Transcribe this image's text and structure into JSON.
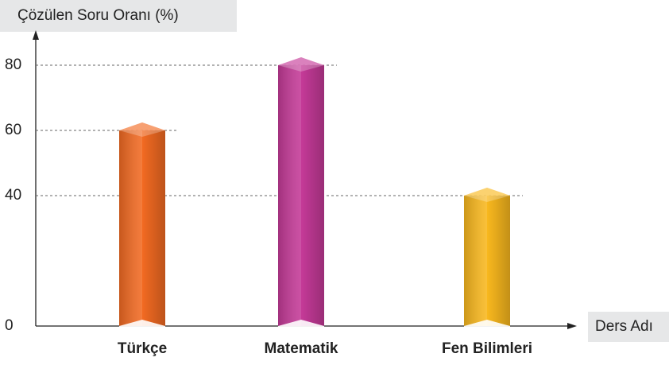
{
  "chart_data": {
    "type": "bar",
    "y_axis_label": "Çözülen Soru Oranı (%)",
    "x_axis_label": "Ders Adı",
    "categories": [
      "Türkçe",
      "Matematik",
      "Fen Bilimleri"
    ],
    "values": [
      60,
      80,
      40
    ],
    "colors": [
      "#f26a22",
      "#c53a98",
      "#f9b81e"
    ],
    "ylim": [
      0,
      80
    ],
    "yticks": [
      0,
      40,
      60,
      80
    ],
    "grid": true
  }
}
